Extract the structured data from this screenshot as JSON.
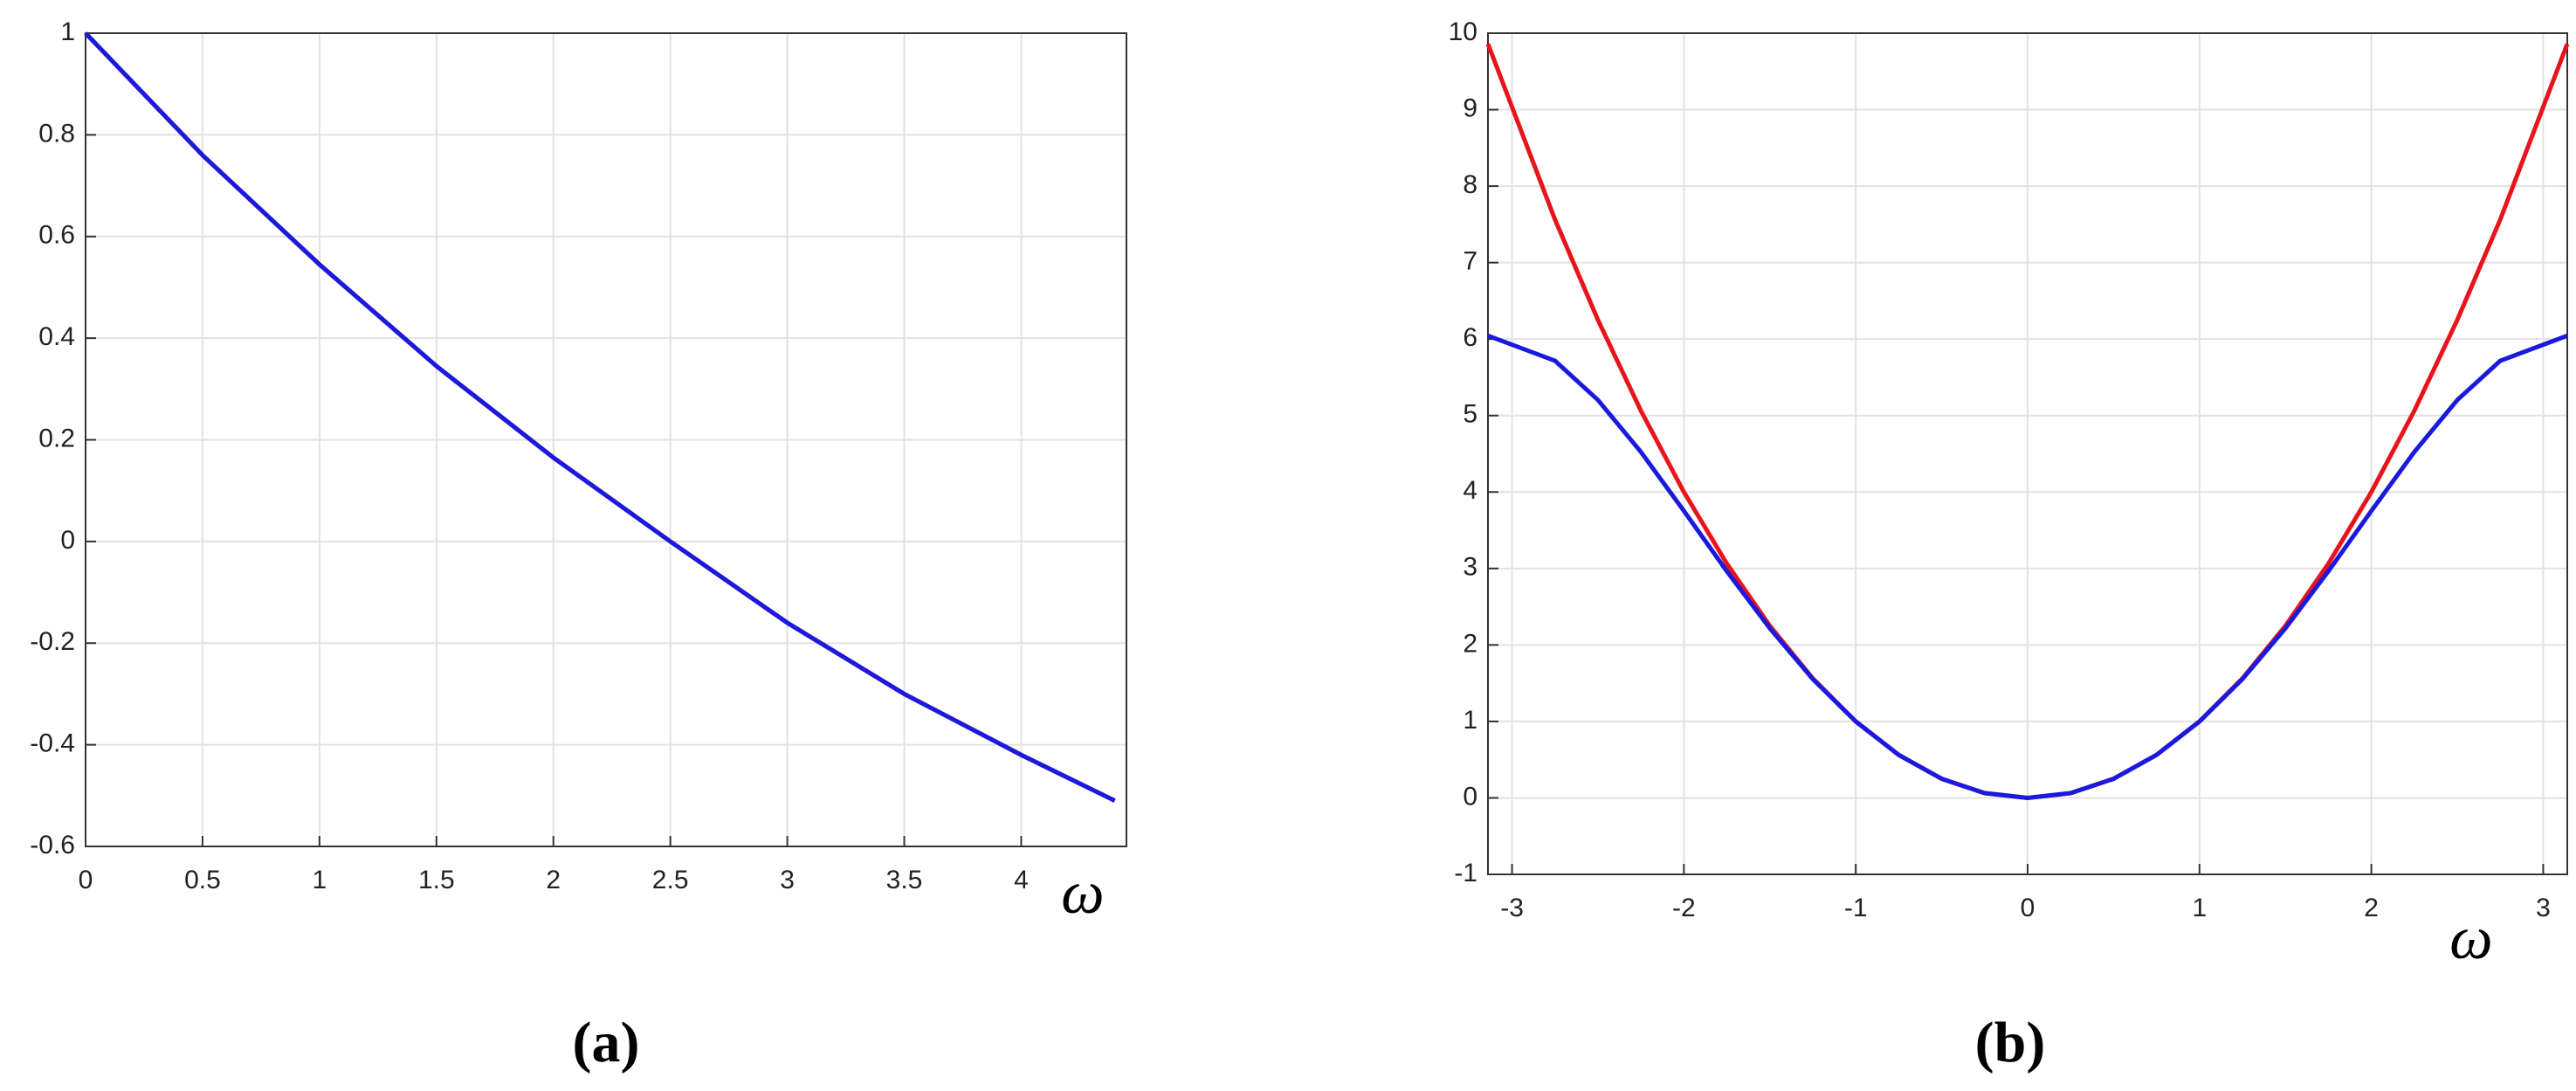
{
  "chart_data": [
    {
      "type": "line",
      "caption": "(a)",
      "xlabel": "ω",
      "x": [
        0,
        0.5,
        1,
        1.5,
        2,
        2.5,
        3,
        3.5,
        4,
        4.4
      ],
      "series": [
        {
          "color": "#e8141c",
          "values": [
            1,
            0.76,
            0.545,
            0.345,
            0.165,
            0,
            -0.16,
            -0.3,
            -0.42,
            -0.51
          ]
        },
        {
          "color": "#1a1adf",
          "values": [
            1,
            0.76,
            0.545,
            0.345,
            0.165,
            0,
            -0.16,
            -0.3,
            -0.42,
            -0.51
          ]
        }
      ],
      "xlim": [
        0,
        4.45
      ],
      "ylim": [
        -0.6,
        1
      ],
      "xticks": [
        0,
        0.5,
        1,
        1.5,
        2,
        2.5,
        3,
        3.5,
        4
      ],
      "yticks": [
        -0.6,
        -0.4,
        -0.2,
        0,
        0.2,
        0.4,
        0.6,
        0.8,
        1
      ],
      "grid": true
    },
    {
      "type": "line",
      "caption": "(b)",
      "xlabel": "ω",
      "x": [
        -3.14,
        -2.75,
        -2.5,
        -2.25,
        -2,
        -1.75,
        -1.5,
        -1.25,
        -1,
        -0.75,
        -0.5,
        -0.25,
        0,
        0.25,
        0.5,
        0.75,
        1,
        1.25,
        1.5,
        1.75,
        2,
        2.25,
        2.5,
        2.75,
        3.14
      ],
      "series": [
        {
          "color": "#e8141c",
          "values": [
            9.86,
            7.5625,
            6.25,
            5.0625,
            4,
            3.0625,
            2.25,
            1.5625,
            1,
            0.5625,
            0.25,
            0.0625,
            0,
            0.0625,
            0.25,
            0.5625,
            1,
            1.5625,
            2.25,
            3.0625,
            4,
            5.0625,
            6.25,
            7.5625,
            9.86
          ]
        },
        {
          "color": "#1a1adf",
          "values": [
            6.044,
            5.716,
            5.203,
            4.524,
            3.753,
            2.964,
            2.218,
            1.554,
            0.999,
            0.562,
            0.25,
            0.063,
            0,
            0.063,
            0.25,
            0.562,
            0.999,
            1.554,
            2.218,
            2.964,
            3.753,
            4.524,
            5.203,
            5.716,
            6.044
          ]
        }
      ],
      "xlim": [
        -3.14,
        3.14
      ],
      "ylim": [
        -1,
        10
      ],
      "xticks": [
        -3,
        -2,
        -1,
        0,
        1,
        2,
        3
      ],
      "yticks": [
        -1,
        0,
        1,
        2,
        3,
        4,
        5,
        6,
        7,
        8,
        9,
        10
      ],
      "grid": true
    }
  ]
}
